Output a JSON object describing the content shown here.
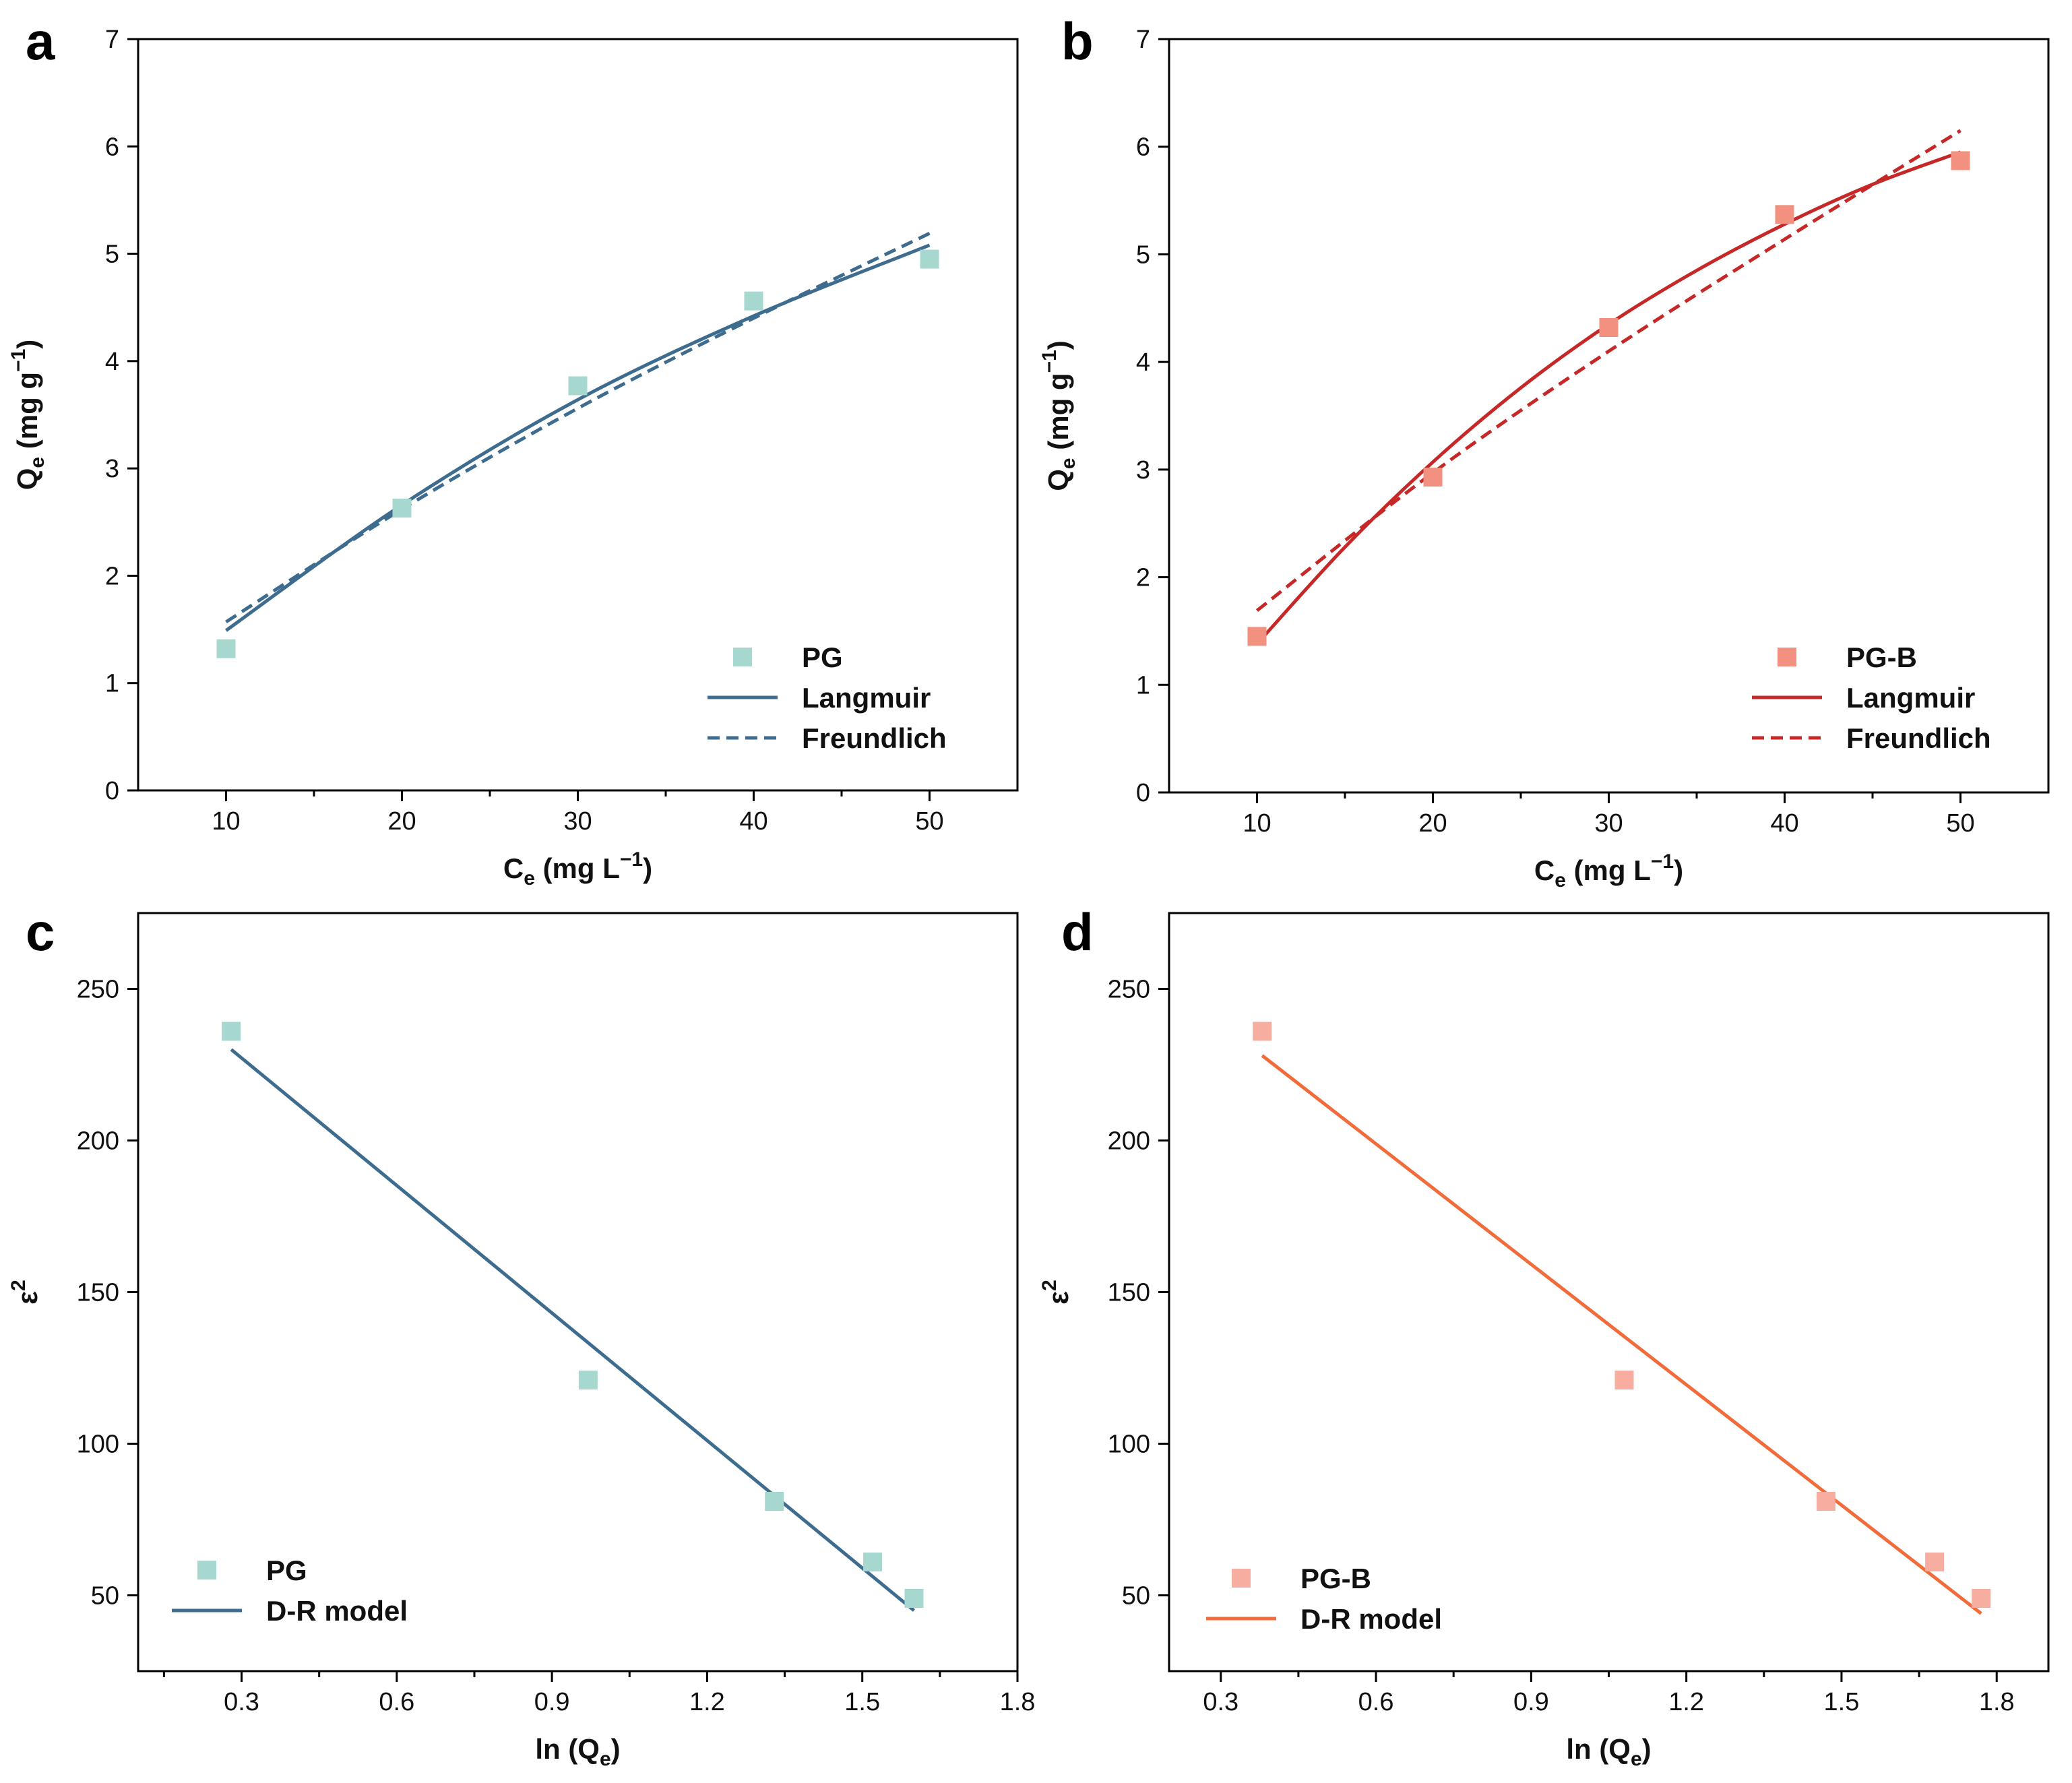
{
  "chart_data": [
    {
      "panel": "a",
      "type": "scatter",
      "xlabel": "C_e (mg L^-1)",
      "xlabel_main": "C",
      "xlabel_sub": "e",
      "xlabel_rest": " (mg L",
      "xlabel_sup": "−1",
      "xlabel_end": ")",
      "ylabel": "Q_e (mg g^-1)",
      "ylabel_main": "Q",
      "ylabel_sub": "e",
      "ylabel_rest": " (mg g",
      "ylabel_sup": "−1",
      "ylabel_end": ")",
      "xlim": [
        5,
        55
      ],
      "ylim": [
        0,
        7
      ],
      "xticks": [
        10,
        20,
        30,
        40,
        50
      ],
      "xminor": [
        15,
        25,
        35,
        45
      ],
      "yticks": [
        0,
        1,
        2,
        3,
        4,
        5,
        6,
        7
      ],
      "ytick_labels": [
        "0",
        "1",
        "2",
        "3",
        "4",
        "5",
        "6",
        "7"
      ],
      "legend_position": "bottom-right",
      "series": [
        {
          "name": "PG",
          "kind": "points",
          "color": "#a6d8cf",
          "x": [
            10,
            20,
            30,
            40,
            50
          ],
          "y": [
            1.32,
            2.63,
            3.77,
            4.56,
            4.95
          ]
        },
        {
          "name": "Langmuir",
          "kind": "line",
          "dash": "solid",
          "color": "#3e6c8f",
          "x": [
            10,
            20,
            30,
            40,
            50
          ],
          "y": [
            1.49,
            2.66,
            3.64,
            4.42,
            5.08
          ]
        },
        {
          "name": "Freundlich",
          "kind": "line",
          "dash": "dashed",
          "color": "#3e6c8f",
          "x": [
            10,
            20,
            30,
            40,
            50
          ],
          "y": [
            1.57,
            2.62,
            3.56,
            4.4,
            5.19
          ]
        }
      ]
    },
    {
      "panel": "b",
      "type": "scatter",
      "xlabel": "C_e (mg L^-1)",
      "xlabel_main": "C",
      "xlabel_sub": "e",
      "xlabel_rest": " (mg L",
      "xlabel_sup": "−1",
      "xlabel_end": ")",
      "ylabel": "Q_e (mg g^-1)",
      "ylabel_main": "Q",
      "ylabel_sub": "e",
      "ylabel_rest": " (mg g",
      "ylabel_sup": "−1",
      "ylabel_end": ")",
      "xlim": [
        5,
        55
      ],
      "ylim": [
        0,
        7
      ],
      "xticks": [
        10,
        20,
        30,
        40,
        50
      ],
      "xminor": [
        15,
        25,
        35,
        45
      ],
      "yticks": [
        0,
        1,
        2,
        3,
        4,
        5,
        6,
        7
      ],
      "ytick_labels": [
        "0",
        "1",
        "2",
        "3",
        "4",
        "5",
        "6",
        "7"
      ],
      "legend_position": "bottom-right",
      "series": [
        {
          "name": "PG-B",
          "kind": "points",
          "color": "#f2917f",
          "x": [
            10,
            20,
            30,
            40,
            50
          ],
          "y": [
            1.45,
            2.93,
            4.32,
            5.37,
            5.87
          ]
        },
        {
          "name": "Langmuir",
          "kind": "line",
          "dash": "solid",
          "color": "#c62828",
          "x": [
            10,
            15,
            20,
            25,
            30,
            35,
            40,
            45,
            50
          ],
          "y": [
            1.38,
            2.28,
            3.07,
            3.76,
            4.35,
            4.85,
            5.28,
            5.65,
            5.95
          ]
        },
        {
          "name": "Freundlich",
          "kind": "line",
          "dash": "dashed",
          "color": "#c62828",
          "x": [
            10,
            20,
            30,
            40,
            50
          ],
          "y": [
            1.69,
            2.97,
            4.1,
            5.14,
            6.15
          ]
        }
      ]
    },
    {
      "panel": "c",
      "type": "scatter",
      "xlabel": "ln (Q_e)",
      "xlabel_main": "ln (Q",
      "xlabel_sub": "e",
      "xlabel_rest": ")",
      "xlabel_sup": "",
      "xlabel_end": "",
      "ylabel": "ε^2",
      "ylabel_main": "ε",
      "ylabel_sub": "",
      "ylabel_rest": "",
      "ylabel_sup": "2",
      "ylabel_end": "",
      "xlim": [
        0.1,
        1.8
      ],
      "ylim": [
        25,
        275
      ],
      "xticks": [
        0.3,
        0.6,
        0.9,
        1.2,
        1.5,
        1.8
      ],
      "xtick_labels": [
        "0.3",
        "0.6",
        "0.9",
        "1.2",
        "1.5",
        "1.8"
      ],
      "xminor": [
        0.15,
        0.45,
        0.75,
        1.05,
        1.35,
        1.65
      ],
      "yticks": [
        50,
        100,
        150,
        200,
        250
      ],
      "ytick_labels": [
        "50",
        "100",
        "150",
        "200",
        "250"
      ],
      "legend_position": "bottom-left",
      "series": [
        {
          "name": "PG",
          "kind": "points",
          "color": "#a6d8cf",
          "x": [
            0.28,
            0.97,
            1.33,
            1.52,
            1.6
          ],
          "y": [
            236,
            121,
            81,
            61,
            49
          ]
        },
        {
          "name": "D-R model",
          "kind": "line",
          "dash": "solid",
          "color": "#3e6c8f",
          "x": [
            0.28,
            1.6
          ],
          "y": [
            230,
            45
          ]
        }
      ]
    },
    {
      "panel": "d",
      "type": "scatter",
      "xlabel": "ln (Q_e)",
      "xlabel_main": "ln (Q",
      "xlabel_sub": "e",
      "xlabel_rest": ")",
      "xlabel_sup": "",
      "xlabel_end": "",
      "ylabel": "ε^2",
      "ylabel_main": "ε",
      "ylabel_sub": "",
      "ylabel_rest": "",
      "ylabel_sup": "2",
      "ylabel_end": "",
      "xlim": [
        0.2,
        1.9
      ],
      "ylim": [
        25,
        275
      ],
      "xticks": [
        0.3,
        0.6,
        0.9,
        1.2,
        1.5,
        1.8
      ],
      "xtick_labels": [
        "0.3",
        "0.6",
        "0.9",
        "1.2",
        "1.5",
        "1.8"
      ],
      "xminor": [
        0.45,
        0.75,
        1.05,
        1.35,
        1.65
      ],
      "yticks": [
        50,
        100,
        150,
        200,
        250
      ],
      "ytick_labels": [
        "50",
        "100",
        "150",
        "200",
        "250"
      ],
      "legend_position": "bottom-left",
      "series": [
        {
          "name": "PG-B",
          "kind": "points",
          "color": "#f7ad9f",
          "x": [
            0.38,
            1.08,
            1.47,
            1.68,
            1.77
          ],
          "y": [
            236,
            121,
            81,
            61,
            49
          ]
        },
        {
          "name": "D-R model",
          "kind": "line",
          "dash": "solid",
          "color": "#f26b3a",
          "x": [
            0.38,
            1.77
          ],
          "y": [
            228,
            44
          ]
        }
      ]
    }
  ]
}
